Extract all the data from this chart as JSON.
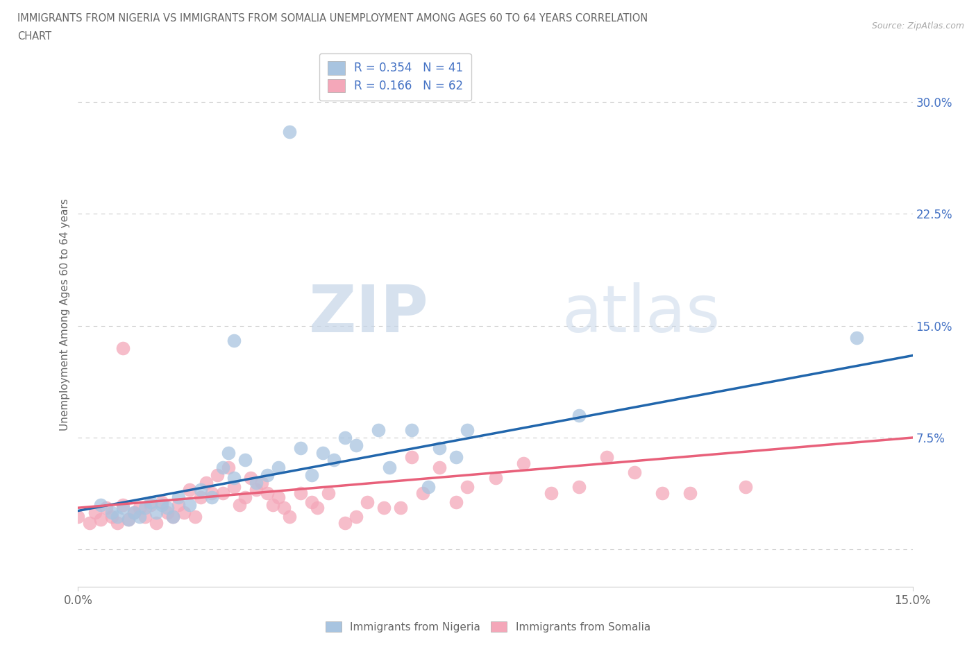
{
  "title_line1": "IMMIGRANTS FROM NIGERIA VS IMMIGRANTS FROM SOMALIA UNEMPLOYMENT AMONG AGES 60 TO 64 YEARS CORRELATION",
  "title_line2": "CHART",
  "source": "Source: ZipAtlas.com",
  "ylabel": "Unemployment Among Ages 60 to 64 years",
  "xmin": 0.0,
  "xmax": 0.15,
  "ymin": -0.025,
  "ymax": 0.34,
  "yticks": [
    0.0,
    0.075,
    0.15,
    0.225,
    0.3
  ],
  "ytick_labels": [
    "",
    "7.5%",
    "15.0%",
    "22.5%",
    "30.0%"
  ],
  "xticks": [
    0.0,
    0.15
  ],
  "xtick_labels": [
    "0.0%",
    "15.0%"
  ],
  "watermark_zip": "ZIP",
  "watermark_atlas": "atlas",
  "nigeria_color": "#a8c4e0",
  "somalia_color": "#f4a7b9",
  "nigeria_line_color": "#2166ac",
  "somalia_line_color": "#e8607a",
  "nigeria_r": 0.354,
  "nigeria_n": 41,
  "somalia_r": 0.166,
  "somalia_n": 62,
  "nigeria_points": [
    [
      0.004,
      0.03
    ],
    [
      0.006,
      0.025
    ],
    [
      0.007,
      0.022
    ],
    [
      0.008,
      0.028
    ],
    [
      0.009,
      0.02
    ],
    [
      0.01,
      0.025
    ],
    [
      0.011,
      0.022
    ],
    [
      0.012,
      0.028
    ],
    [
      0.013,
      0.032
    ],
    [
      0.014,
      0.025
    ],
    [
      0.015,
      0.03
    ],
    [
      0.016,
      0.028
    ],
    [
      0.017,
      0.022
    ],
    [
      0.018,
      0.035
    ],
    [
      0.02,
      0.03
    ],
    [
      0.022,
      0.04
    ],
    [
      0.024,
      0.035
    ],
    [
      0.026,
      0.055
    ],
    [
      0.027,
      0.065
    ],
    [
      0.028,
      0.048
    ],
    [
      0.03,
      0.06
    ],
    [
      0.032,
      0.045
    ],
    [
      0.034,
      0.05
    ],
    [
      0.036,
      0.055
    ],
    [
      0.038,
      0.28
    ],
    [
      0.04,
      0.068
    ],
    [
      0.042,
      0.05
    ],
    [
      0.044,
      0.065
    ],
    [
      0.046,
      0.06
    ],
    [
      0.048,
      0.075
    ],
    [
      0.05,
      0.07
    ],
    [
      0.054,
      0.08
    ],
    [
      0.056,
      0.055
    ],
    [
      0.06,
      0.08
    ],
    [
      0.063,
      0.042
    ],
    [
      0.065,
      0.068
    ],
    [
      0.068,
      0.062
    ],
    [
      0.07,
      0.08
    ],
    [
      0.09,
      0.09
    ],
    [
      0.14,
      0.142
    ],
    [
      0.028,
      0.14
    ]
  ],
  "somalia_points": [
    [
      0.0,
      0.022
    ],
    [
      0.002,
      0.018
    ],
    [
      0.003,
      0.025
    ],
    [
      0.004,
      0.02
    ],
    [
      0.005,
      0.028
    ],
    [
      0.006,
      0.022
    ],
    [
      0.007,
      0.018
    ],
    [
      0.008,
      0.03
    ],
    [
      0.009,
      0.02
    ],
    [
      0.01,
      0.025
    ],
    [
      0.011,
      0.028
    ],
    [
      0.012,
      0.022
    ],
    [
      0.013,
      0.03
    ],
    [
      0.014,
      0.018
    ],
    [
      0.015,
      0.032
    ],
    [
      0.016,
      0.025
    ],
    [
      0.017,
      0.022
    ],
    [
      0.018,
      0.03
    ],
    [
      0.019,
      0.025
    ],
    [
      0.02,
      0.04
    ],
    [
      0.021,
      0.022
    ],
    [
      0.022,
      0.035
    ],
    [
      0.023,
      0.045
    ],
    [
      0.024,
      0.038
    ],
    [
      0.025,
      0.05
    ],
    [
      0.026,
      0.038
    ],
    [
      0.027,
      0.055
    ],
    [
      0.028,
      0.042
    ],
    [
      0.029,
      0.03
    ],
    [
      0.03,
      0.035
    ],
    [
      0.031,
      0.048
    ],
    [
      0.032,
      0.04
    ],
    [
      0.033,
      0.045
    ],
    [
      0.034,
      0.038
    ],
    [
      0.035,
      0.03
    ],
    [
      0.036,
      0.035
    ],
    [
      0.037,
      0.028
    ],
    [
      0.038,
      0.022
    ],
    [
      0.04,
      0.038
    ],
    [
      0.042,
      0.032
    ],
    [
      0.043,
      0.028
    ],
    [
      0.045,
      0.038
    ],
    [
      0.048,
      0.018
    ],
    [
      0.05,
      0.022
    ],
    [
      0.052,
      0.032
    ],
    [
      0.055,
      0.028
    ],
    [
      0.058,
      0.028
    ],
    [
      0.06,
      0.062
    ],
    [
      0.062,
      0.038
    ],
    [
      0.065,
      0.055
    ],
    [
      0.068,
      0.032
    ],
    [
      0.07,
      0.042
    ],
    [
      0.075,
      0.048
    ],
    [
      0.08,
      0.058
    ],
    [
      0.085,
      0.038
    ],
    [
      0.09,
      0.042
    ],
    [
      0.095,
      0.062
    ],
    [
      0.1,
      0.052
    ],
    [
      0.105,
      0.038
    ],
    [
      0.11,
      0.038
    ],
    [
      0.12,
      0.042
    ],
    [
      0.008,
      0.135
    ]
  ],
  "nigeria_trend": [
    0.0,
    0.15,
    0.026,
    0.13
  ],
  "somalia_trend": [
    0.0,
    0.15,
    0.028,
    0.075
  ]
}
